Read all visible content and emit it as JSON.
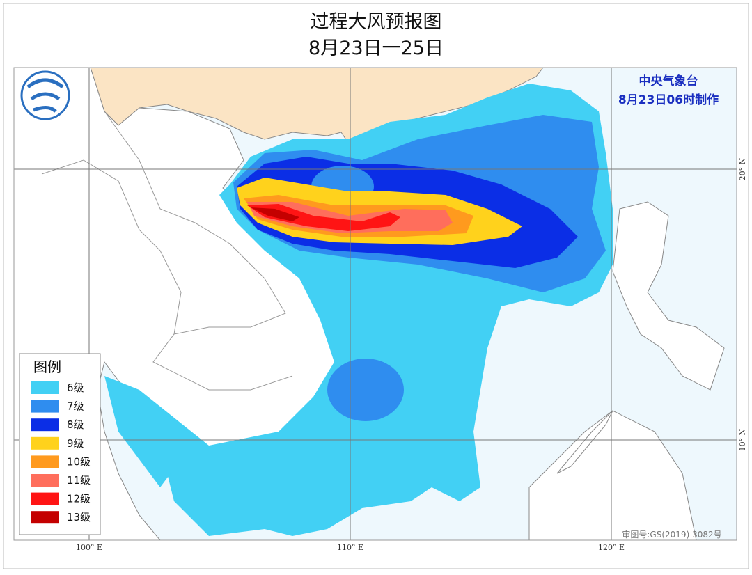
{
  "header": {
    "title": "过程大风预报图",
    "subtitle": "8月23日一25日"
  },
  "agency": {
    "name": "中央气象台",
    "issued": "8月23日06时制作"
  },
  "legend": {
    "title": "图例",
    "items": [
      {
        "label": "6级",
        "color": "#42d0f4"
      },
      {
        "label": "7级",
        "color": "#2f8def"
      },
      {
        "label": "8级",
        "color": "#0b2ee6"
      },
      {
        "label": "9级",
        "color": "#ffd21c"
      },
      {
        "label": "10级",
        "color": "#ff9a1e"
      },
      {
        "label": "11级",
        "color": "#ff6e5c"
      },
      {
        "label": "12级",
        "color": "#ff1414"
      },
      {
        "label": "13级",
        "color": "#c40000"
      }
    ]
  },
  "axes": {
    "longitudes": [
      "100° E",
      "110° E",
      "120° E"
    ],
    "latitudes": [
      "20° N",
      "10° N"
    ]
  },
  "approval": "审图号:GS(2019) 3082号"
}
